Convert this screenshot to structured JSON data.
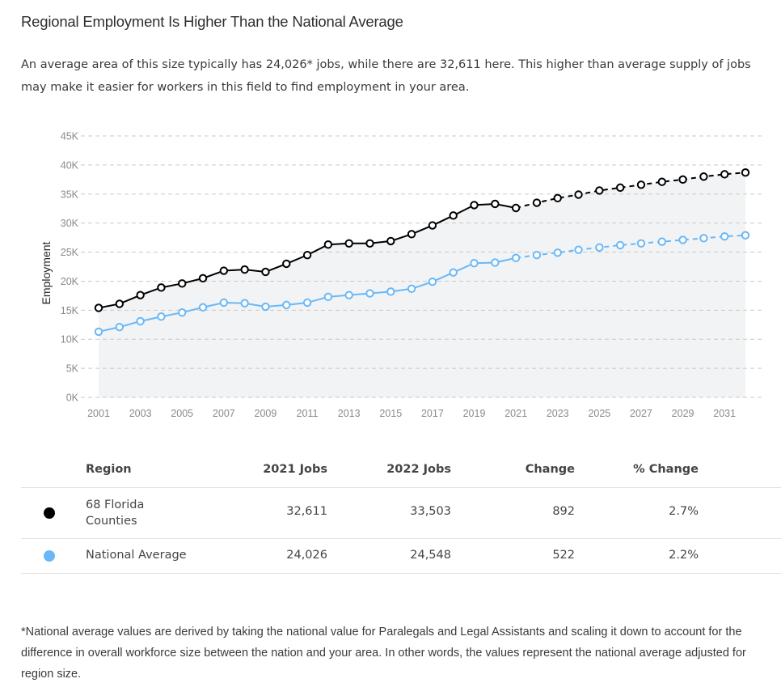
{
  "page": {
    "title": "Regional Employment Is Higher Than the National Average",
    "description": "An average area of this size typically has 24,026* jobs, while there are 32,611 here. This higher than average supply of jobs may make it easier for workers in this field to find employment in your area.",
    "footnote": "*National average values are derived by taking the national value for Paralegals and Legal Assistants and scaling it down to account for the difference in overall workforce size between the nation and your area. In other words, the values represent the national average adjusted for region size."
  },
  "chart_data": {
    "type": "line",
    "title": "",
    "xlabel": "",
    "ylabel": "Employment",
    "ylim": [
      0,
      45000
    ],
    "yticks": [
      0,
      5000,
      10000,
      15000,
      20000,
      25000,
      30000,
      35000,
      40000,
      45000
    ],
    "ytick_labels": [
      "0K",
      "5K",
      "10K",
      "15K",
      "20K",
      "25K",
      "30K",
      "35K",
      "40K",
      "45K"
    ],
    "xtick_labels": [
      "2001",
      "2003",
      "2005",
      "2007",
      "2009",
      "2011",
      "2013",
      "2015",
      "2017",
      "2019",
      "2021",
      "2023",
      "2025",
      "2027",
      "2029",
      "2031"
    ],
    "grid": true,
    "projection_start": 2021,
    "x": [
      2001,
      2002,
      2003,
      2004,
      2005,
      2006,
      2007,
      2008,
      2009,
      2010,
      2011,
      2012,
      2013,
      2014,
      2015,
      2016,
      2017,
      2018,
      2019,
      2020,
      2021,
      2022,
      2023,
      2024,
      2025,
      2026,
      2027,
      2028,
      2029,
      2030,
      2031,
      2032
    ],
    "series": [
      {
        "name": "68 Florida Counties",
        "color": "#000000",
        "values": [
          15400,
          16100,
          17600,
          18900,
          19600,
          20500,
          21800,
          22000,
          21600,
          23000,
          24500,
          26300,
          26500,
          26500,
          26900,
          28100,
          29600,
          31300,
          33100,
          33300,
          32600,
          33500,
          34300,
          34900,
          35600,
          36100,
          36600,
          37100,
          37500,
          38000,
          38400,
          38700
        ]
      },
      {
        "name": "National Average",
        "color": "#6ab8f7",
        "values": [
          11300,
          12100,
          13100,
          13900,
          14600,
          15500,
          16300,
          16200,
          15600,
          15900,
          16300,
          17300,
          17600,
          17900,
          18200,
          18700,
          19900,
          21500,
          23100,
          23200,
          24000,
          24500,
          24900,
          25400,
          25800,
          26200,
          26500,
          26800,
          27100,
          27400,
          27700,
          27900
        ]
      }
    ]
  },
  "table": {
    "headers": {
      "region": "Region",
      "jobs2021": "2021 Jobs",
      "jobs2022": "2022 Jobs",
      "change": "Change",
      "pct": "% Change"
    },
    "rows": [
      {
        "color": "#000000",
        "region_line1": "68 Florida",
        "region_line2": "Counties",
        "jobs2021": "32,611",
        "jobs2022": "33,503",
        "change": "892",
        "pct": "2.7%"
      },
      {
        "color": "#6ab8f7",
        "region": "National Average",
        "jobs2021": "24,026",
        "jobs2022": "24,548",
        "change": "522",
        "pct": "2.2%"
      }
    ]
  }
}
